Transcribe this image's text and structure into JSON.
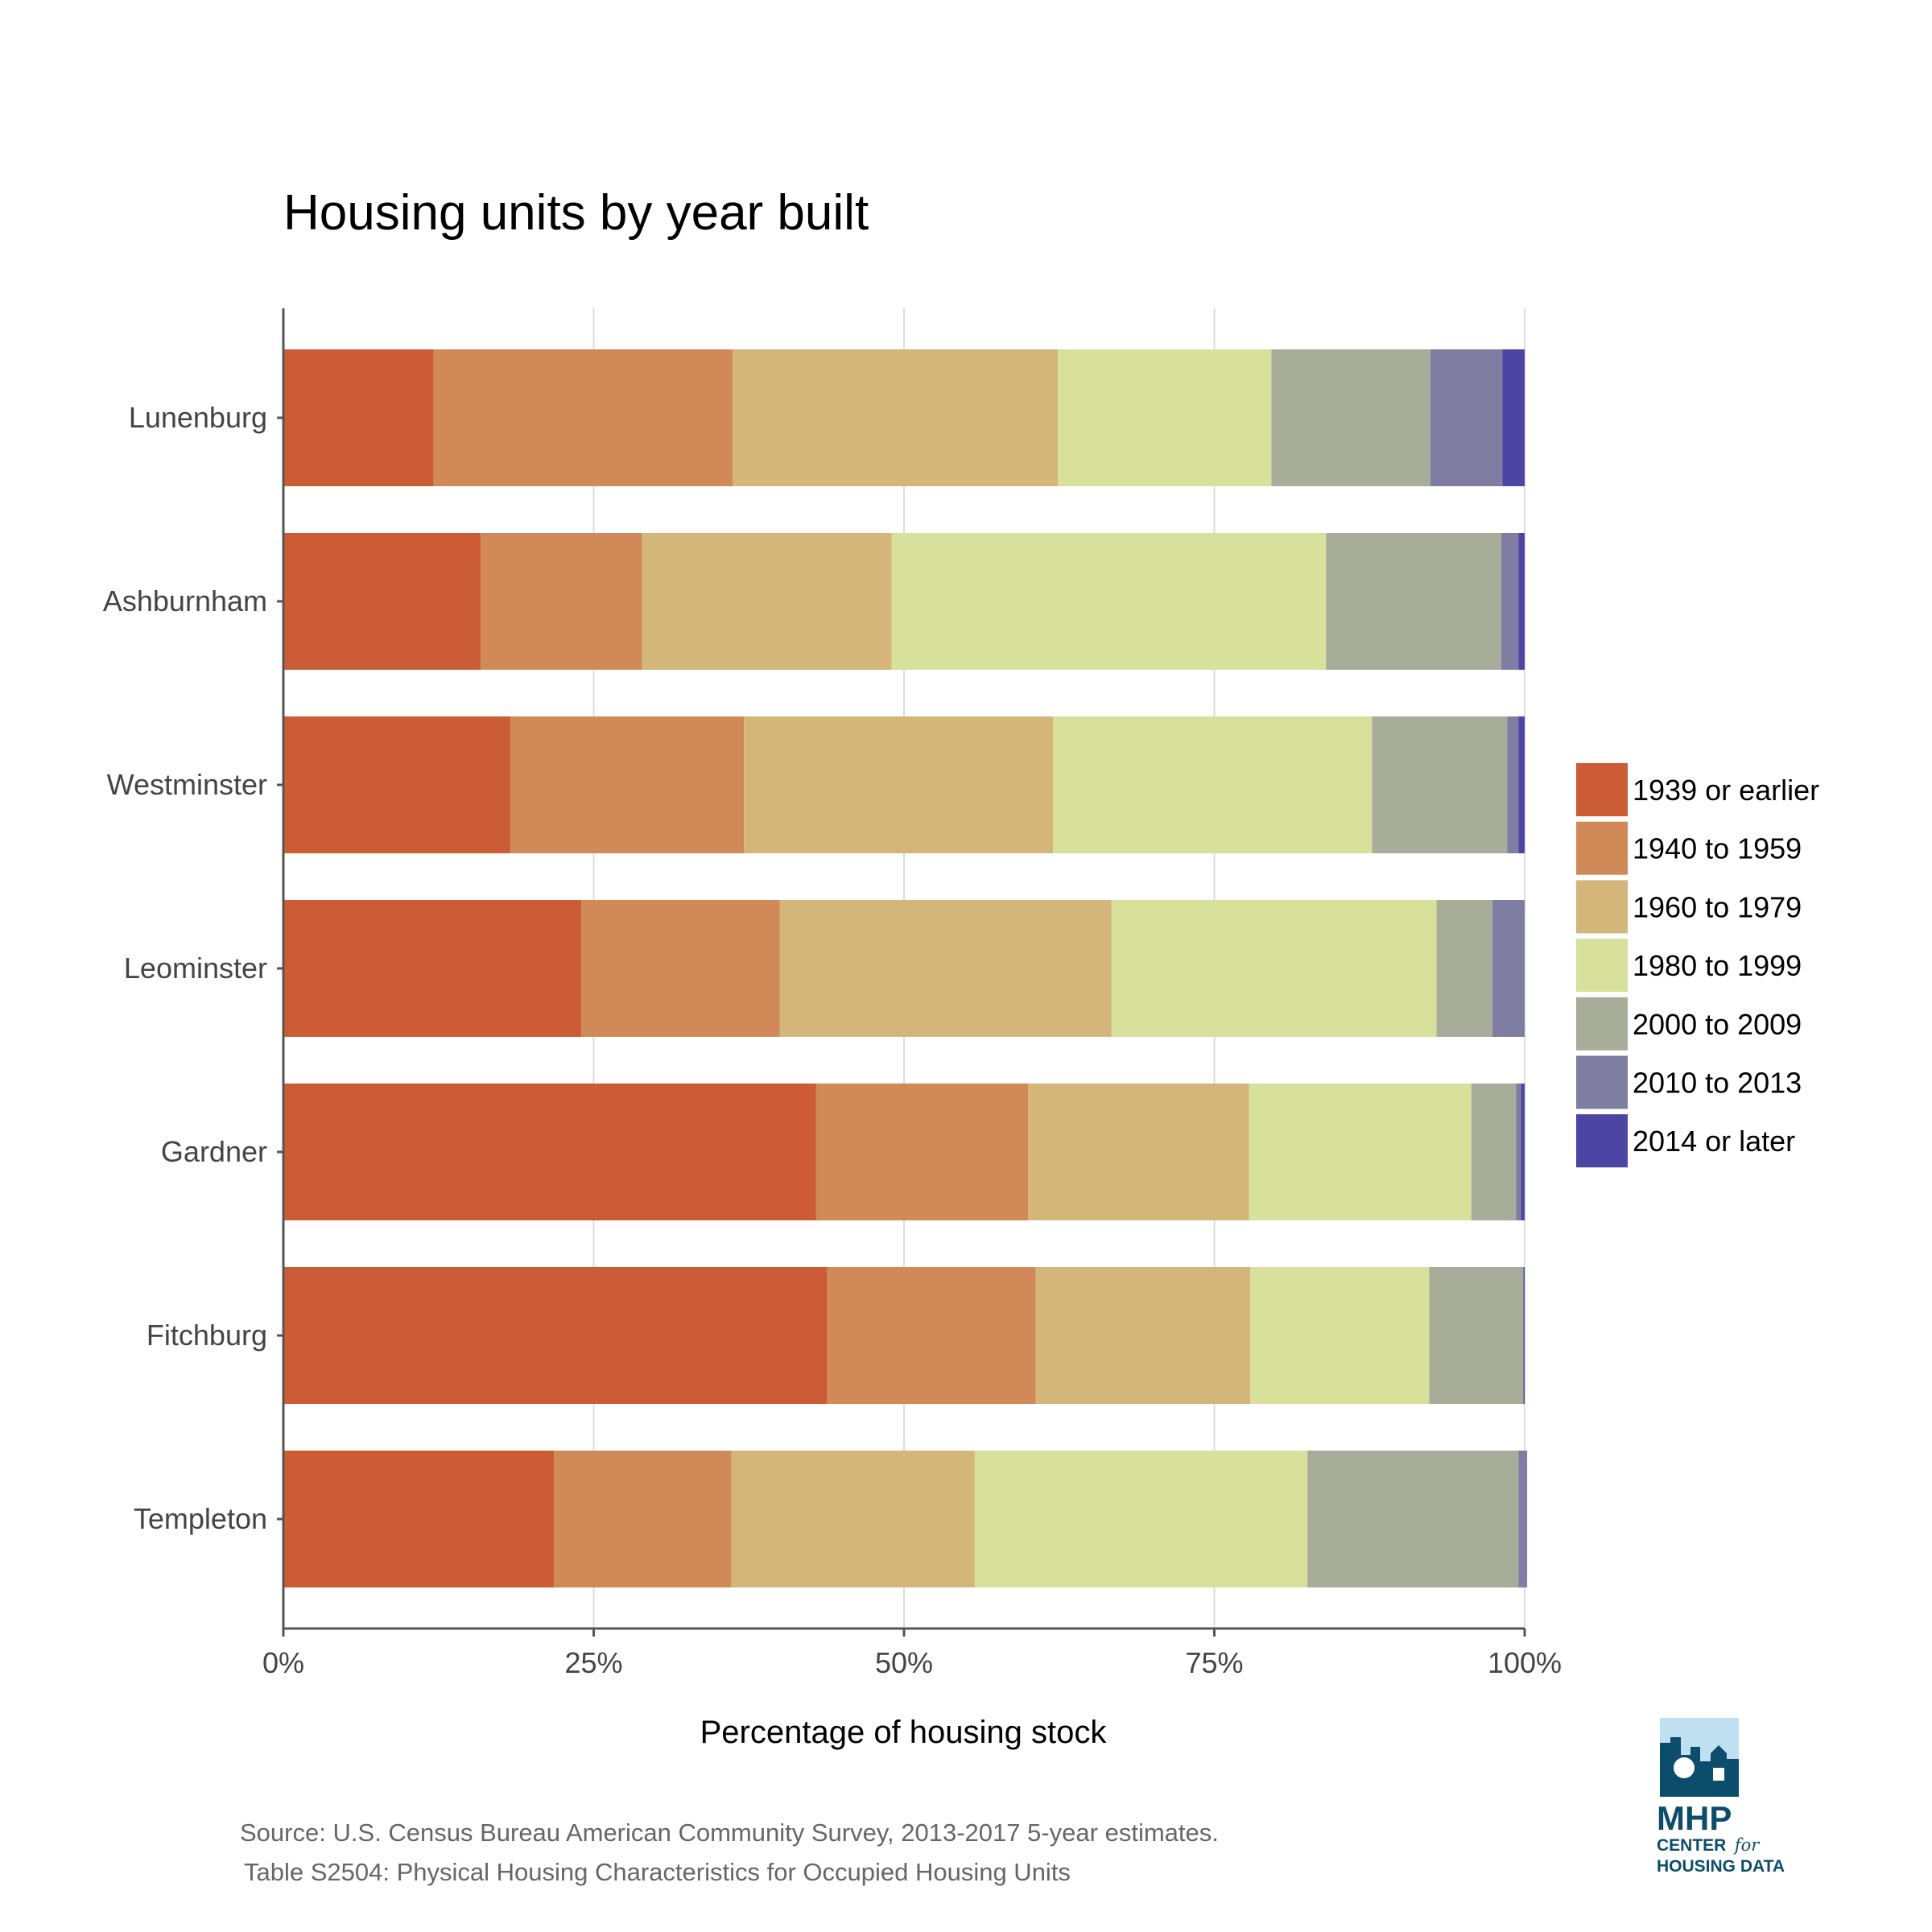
{
  "chart_data": {
    "type": "bar",
    "orientation": "horizontal",
    "stacked": true,
    "title": "Housing units by year built",
    "xlabel": "Percentage of housing stock",
    "ylabel": "",
    "xlim": [
      0,
      100
    ],
    "x_ticks": [
      "0%",
      "25%",
      "50%",
      "75%",
      "100%"
    ],
    "grid": true,
    "legend_position": "right",
    "categories": [
      "Lunenburg",
      "Ashburnham",
      "Westminster",
      "Leominster",
      "Gardner",
      "Fitchburg",
      "Templeton"
    ],
    "series": [
      {
        "name": "1939 or earlier",
        "color": "#cb5c35",
        "values": [
          12.1,
          15.9,
          18.3,
          24.0,
          42.9,
          43.8,
          21.8
        ]
      },
      {
        "name": "1940 to 1959",
        "color": "#d08957",
        "values": [
          24.1,
          13.0,
          18.8,
          16.0,
          17.1,
          16.8,
          14.3
        ]
      },
      {
        "name": "1960 to 1979",
        "color": "#d4b67a",
        "values": [
          26.2,
          20.1,
          24.9,
          26.7,
          17.8,
          17.3,
          19.6
        ]
      },
      {
        "name": "1980 to 1999",
        "color": "#d8e19b",
        "values": [
          17.2,
          35.0,
          25.7,
          26.2,
          17.9,
          14.4,
          26.8
        ]
      },
      {
        "name": "2000 to 2009",
        "color": "#a8ad9a",
        "values": [
          12.8,
          14.1,
          10.9,
          4.5,
          3.6,
          7.6,
          17.0
        ]
      },
      {
        "name": "2010 to 2013",
        "color": "#7f7ea2",
        "values": [
          5.8,
          1.4,
          0.9,
          2.6,
          0.4,
          0.0,
          0.7
        ]
      },
      {
        "name": "2014 or later",
        "color": "#4d45a3",
        "values": [
          1.8,
          0.5,
          0.5,
          0.0,
          0.3,
          0.1,
          0.0
        ]
      }
    ]
  },
  "source_lines": [
    "Source: U.S. Census Bureau American Community Survey, 2013-2017 5-year estimates.",
    "Table S2504: Physical Housing Characteristics for Occupied Housing Units"
  ],
  "logo": {
    "main": "MHP",
    "line1_a": "CENTER",
    "line1_b": "for",
    "line2": "HOUSING DATA"
  },
  "colors": {
    "logo_dark": "#0b4d6b",
    "logo_light": "#bfe0f0"
  }
}
